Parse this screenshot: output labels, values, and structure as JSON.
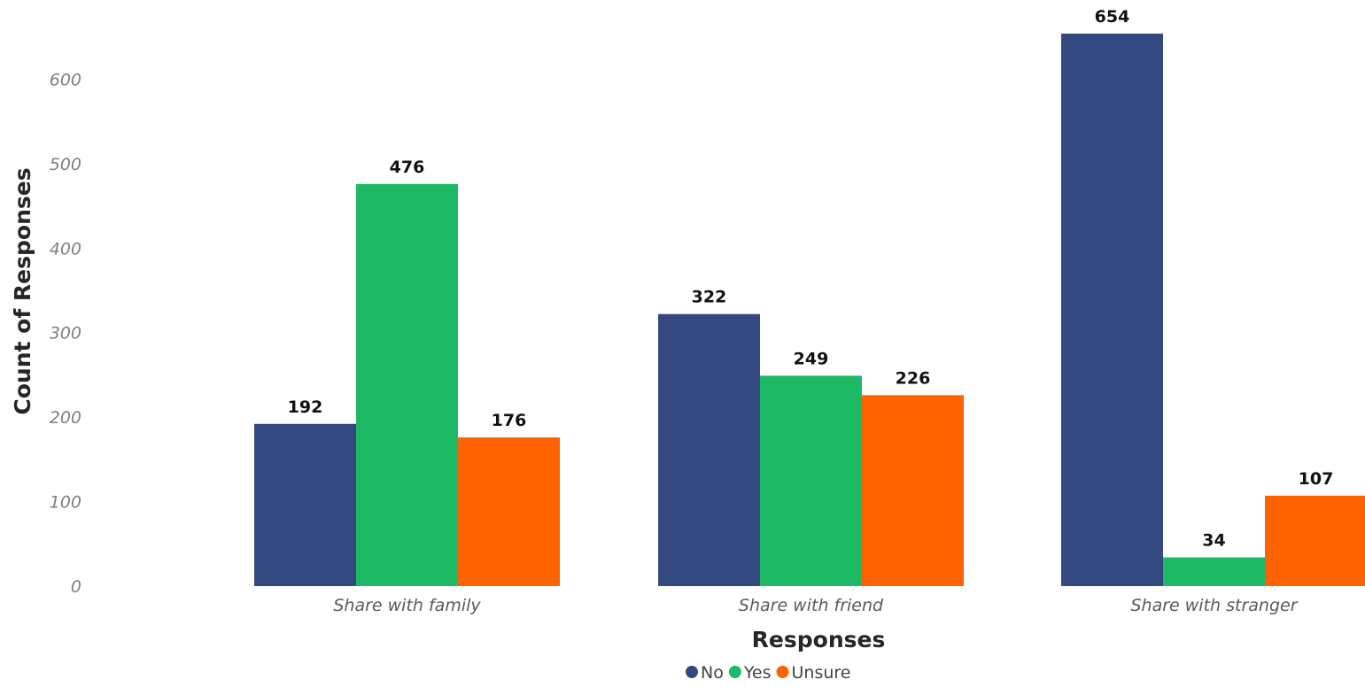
{
  "chart_data": {
    "type": "bar",
    "title": "",
    "xlabel": "Responses",
    "ylabel": "Count of Responses",
    "categories": [
      "Share with family",
      "Share with friend",
      "Share with stranger"
    ],
    "series": [
      {
        "name": "No",
        "color": "#34497f",
        "values": [
          192,
          322,
          654
        ]
      },
      {
        "name": "Yes",
        "color": "#1db964",
        "values": [
          476,
          249,
          34
        ]
      },
      {
        "name": "Unsure",
        "color": "#ff6200",
        "values": [
          176,
          226,
          107
        ]
      }
    ],
    "yticks": [
      "0",
      "100",
      "200",
      "300",
      "400",
      "500",
      "600"
    ],
    "ylim": [
      0,
      700
    ],
    "grid": false,
    "legend_position": "bottom-center"
  }
}
